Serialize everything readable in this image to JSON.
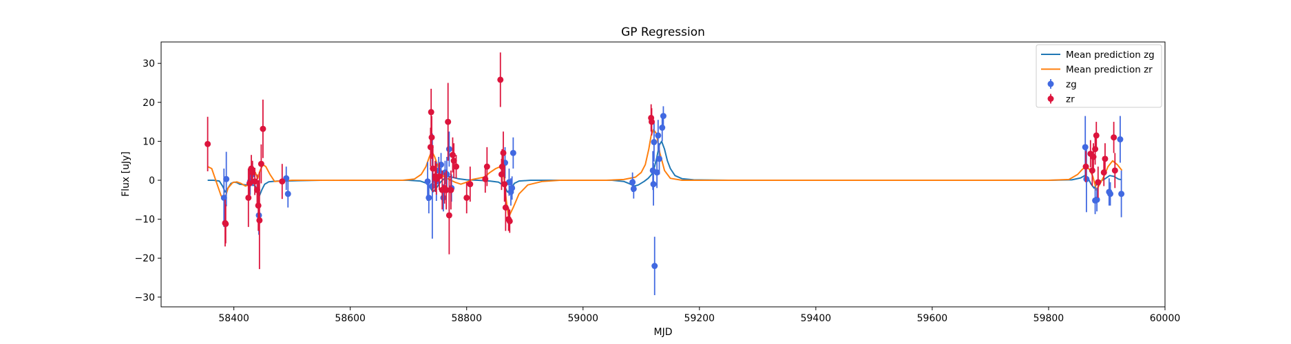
{
  "chart_data": {
    "type": "scatter",
    "title": "GP Regression",
    "xlabel": "MJD",
    "ylabel": "Flux [uJy]",
    "xlim": [
      58275,
      60000
    ],
    "ylim": [
      -32.5,
      35.5
    ],
    "xticks": [
      58400,
      58600,
      58800,
      59000,
      59200,
      59400,
      59600,
      59800,
      60000
    ],
    "yticks": [
      -30,
      -20,
      -10,
      0,
      10,
      20,
      30
    ],
    "grid": false,
    "legend_position": "top-right",
    "legend": [
      {
        "label": "Mean prediction zg",
        "kind": "line",
        "color": "#1f77b4"
      },
      {
        "label": "Mean prediction zr",
        "kind": "line",
        "color": "#ff7f0e"
      },
      {
        "label": "zg",
        "kind": "errorbar",
        "color": "#4169e1"
      },
      {
        "label": "zr",
        "kind": "errorbar",
        "color": "#dc143c"
      }
    ],
    "lines": [
      {
        "name": "Mean prediction zg",
        "color": "#1f77b4",
        "x": [
          58355,
          58365,
          58375,
          58381,
          58385,
          58390,
          58395,
          58400,
          58405,
          58410,
          58420,
          58430,
          58437,
          58441,
          58444,
          58448,
          58453,
          58460,
          58475,
          58490,
          58510,
          58550,
          58600,
          58650,
          58700,
          58720,
          58730,
          58737,
          58742,
          58748,
          58755,
          58762,
          58768,
          58775,
          58785,
          58800,
          58820,
          58840,
          58855,
          58865,
          58870,
          58876,
          58882,
          58890,
          58910,
          58950,
          59000,
          59050,
          59070,
          59080,
          59088,
          59095,
          59105,
          59112,
          59118,
          59123,
          59127,
          59131,
          59135,
          59140,
          59145,
          59150,
          59158,
          59170,
          59190,
          59250,
          59400,
          59600,
          59800,
          59840,
          59855,
          59862,
          59868,
          59873,
          59878,
          59883,
          59888,
          59895,
          59905,
          59912,
          59920,
          59926
        ],
        "y": [
          0,
          0,
          -0.2,
          -1.6,
          -3.0,
          -2.0,
          -0.8,
          -0.5,
          -0.6,
          -1.0,
          -1.2,
          -1.0,
          -1.5,
          -3.5,
          -4.0,
          -2.5,
          -1.0,
          -0.4,
          -0.2,
          -0.2,
          -0.1,
          0,
          0,
          0,
          0,
          -0.2,
          -0.7,
          -1.8,
          -3.0,
          -2.0,
          -0.5,
          0.5,
          1.0,
          0.8,
          0.4,
          0.1,
          0,
          -0.2,
          -0.5,
          -1.5,
          -3.0,
          -2.5,
          -0.8,
          -0.2,
          0,
          0,
          0,
          0,
          -0.3,
          -0.9,
          -1.5,
          -1.2,
          -0.3,
          0.5,
          1.5,
          3.5,
          6.0,
          9.0,
          10.0,
          8.0,
          5.0,
          3.0,
          1.2,
          0.4,
          0.1,
          0,
          0,
          0,
          0,
          0.1,
          0.6,
          1.2,
          0.5,
          -1.0,
          -2.0,
          -1.0,
          -0.3,
          0.2,
          1.2,
          1.0,
          0.3,
          0.1
        ]
      },
      {
        "name": "Mean prediction zr",
        "color": "#ff7f0e",
        "x": [
          58355,
          58362,
          58370,
          58378,
          58384,
          58390,
          58398,
          58405,
          58412,
          58420,
          58428,
          58433,
          58437,
          58441,
          58445,
          58450,
          58455,
          58462,
          58470,
          58480,
          58490,
          58500,
          58520,
          58560,
          58600,
          58650,
          58690,
          58710,
          58722,
          58730,
          58736,
          58740,
          58745,
          58752,
          58760,
          58770,
          58780,
          58790,
          58800,
          58810,
          58820,
          58830,
          58840,
          58850,
          58858,
          58864,
          58868,
          58872,
          58880,
          58890,
          58905,
          58930,
          58960,
          59000,
          59040,
          59070,
          59090,
          59100,
          59107,
          59113,
          59117,
          59121,
          59126,
          59132,
          59140,
          59150,
          59170,
          59200,
          59300,
          59500,
          59700,
          59800,
          59835,
          59850,
          59858,
          59864,
          59870,
          59876,
          59882,
          59888,
          59895,
          59902,
          59910,
          59918,
          59926
        ],
        "y": [
          3.5,
          3.0,
          -0.5,
          -4.0,
          -5.0,
          -2.0,
          -0.6,
          -0.4,
          -0.8,
          -1.5,
          -1.0,
          1.0,
          2.0,
          0.5,
          2.5,
          4.0,
          3.5,
          1.5,
          -0.3,
          -0.2,
          -0.1,
          0,
          0,
          0,
          0,
          0,
          0,
          0.3,
          1.5,
          3.5,
          6.0,
          7.5,
          6.0,
          3.0,
          1.0,
          0.2,
          -0.5,
          -1.0,
          -0.5,
          0.2,
          0.5,
          0.8,
          2.0,
          3.0,
          3.5,
          1.0,
          -5.0,
          -9.5,
          -7.0,
          -3.5,
          -1.2,
          -0.3,
          0,
          0,
          0,
          0.2,
          0.8,
          2.0,
          4.0,
          8.0,
          11.5,
          13.0,
          12.0,
          7.0,
          2.5,
          0.5,
          0,
          0,
          0,
          0,
          0,
          0,
          0.2,
          1.5,
          2.8,
          3.5,
          2.8,
          1.0,
          -2.5,
          -1.0,
          1.0,
          3.5,
          5.0,
          4.0,
          2.5
        ]
      }
    ],
    "series": [
      {
        "name": "zg",
        "color": "#4169e1",
        "points": [
          {
            "x": 58383,
            "y": -4.5,
            "err": 7.5
          },
          {
            "x": 58387,
            "y": 0.3,
            "err": 7.0
          },
          {
            "x": 58428,
            "y": -0.3,
            "err": 3.5
          },
          {
            "x": 58432,
            "y": 1.5,
            "err": 3.0
          },
          {
            "x": 58443,
            "y": -9.0,
            "err": 5.0
          },
          {
            "x": 58490,
            "y": 0.5,
            "err": 3.0
          },
          {
            "x": 58493,
            "y": -3.5,
            "err": 3.5
          },
          {
            "x": 58733,
            "y": -0.3,
            "err": 5.0
          },
          {
            "x": 58735,
            "y": -4.5,
            "err": 4.0
          },
          {
            "x": 58741,
            "y": -1.5,
            "err": 13.5
          },
          {
            "x": 58748,
            "y": -0.3,
            "err": 5.0
          },
          {
            "x": 58752,
            "y": 2.5,
            "err": 3.5
          },
          {
            "x": 58756,
            "y": 4.0,
            "err": 3.0
          },
          {
            "x": 58760,
            "y": -4.5,
            "err": 3.5
          },
          {
            "x": 58763,
            "y": 2.0,
            "err": 3.0
          },
          {
            "x": 58766,
            "y": 1.5,
            "err": 4.5
          },
          {
            "x": 58770,
            "y": 8.0,
            "err": 4.5
          },
          {
            "x": 58774,
            "y": -2.0,
            "err": 3.5
          },
          {
            "x": 58866,
            "y": 4.5,
            "err": 4.0
          },
          {
            "x": 58873,
            "y": -0.5,
            "err": 3.5
          },
          {
            "x": 58876,
            "y": -3.0,
            "err": 3.5
          },
          {
            "x": 58878,
            "y": -2.0,
            "err": 3.0
          },
          {
            "x": 58880,
            "y": 7.0,
            "err": 4.0
          },
          {
            "x": 59085,
            "y": -0.5,
            "err": 2.5
          },
          {
            "x": 59087,
            "y": -2.2,
            "err": 2.5
          },
          {
            "x": 59120,
            "y": 2.5,
            "err": 5.0
          },
          {
            "x": 59121,
            "y": -1.0,
            "err": 5.5
          },
          {
            "x": 59122,
            "y": 9.8,
            "err": 5.0
          },
          {
            "x": 59123,
            "y": -22.0,
            "err": 7.5
          },
          {
            "x": 59127,
            "y": 2.0,
            "err": 4.0
          },
          {
            "x": 59129,
            "y": 11.5,
            "err": 4.0
          },
          {
            "x": 59131,
            "y": 5.5,
            "err": 4.0
          },
          {
            "x": 59136,
            "y": 13.5,
            "err": 3.5
          },
          {
            "x": 59138,
            "y": 16.5,
            "err": 2.5
          },
          {
            "x": 59863,
            "y": 8.5,
            "err": 8.0
          },
          {
            "x": 59865,
            "y": 0.3,
            "err": 8.5
          },
          {
            "x": 59880,
            "y": -5.2,
            "err": 3.5
          },
          {
            "x": 59883,
            "y": -5.0,
            "err": 3.0
          },
          {
            "x": 59904,
            "y": -3.0,
            "err": 3.5
          },
          {
            "x": 59906,
            "y": -3.5,
            "err": 3.0
          },
          {
            "x": 59923,
            "y": 10.5,
            "err": 6.0
          },
          {
            "x": 59925,
            "y": -3.5,
            "err": 6.0
          }
        ]
      },
      {
        "name": "zr",
        "color": "#dc143c",
        "points": [
          {
            "x": 58355,
            "y": 9.3,
            "err": 7.0
          },
          {
            "x": 58385,
            "y": -11.0,
            "err": 6.0
          },
          {
            "x": 58386,
            "y": -11.2,
            "err": 5.0
          },
          {
            "x": 58425,
            "y": -4.5,
            "err": 7.5
          },
          {
            "x": 58427,
            "y": -0.8,
            "err": 4.0
          },
          {
            "x": 58430,
            "y": 3.0,
            "err": 3.5
          },
          {
            "x": 58432,
            "y": 2.0,
            "err": 3.0
          },
          {
            "x": 58436,
            "y": -0.3,
            "err": 3.5
          },
          {
            "x": 58440,
            "y": -2.5,
            "err": 4.0
          },
          {
            "x": 58442,
            "y": -6.5,
            "err": 6.5
          },
          {
            "x": 58444,
            "y": -10.3,
            "err": 12.5
          },
          {
            "x": 58447,
            "y": 4.2,
            "err": 5.0
          },
          {
            "x": 58450,
            "y": 13.2,
            "err": 7.5
          },
          {
            "x": 58483,
            "y": -0.3,
            "err": 4.5
          },
          {
            "x": 58738,
            "y": 8.5,
            "err": 5.0
          },
          {
            "x": 58739,
            "y": 17.5,
            "err": 6.0
          },
          {
            "x": 58740,
            "y": 11.0,
            "err": 5.5
          },
          {
            "x": 58742,
            "y": 3.0,
            "err": 6.0
          },
          {
            "x": 58746,
            "y": 1.0,
            "err": 4.0
          },
          {
            "x": 58748,
            "y": 0.3,
            "err": 4.0
          },
          {
            "x": 58753,
            "y": 1.0,
            "err": 3.5
          },
          {
            "x": 58758,
            "y": -2.5,
            "err": 5.0
          },
          {
            "x": 58762,
            "y": -2.0,
            "err": 4.0
          },
          {
            "x": 58765,
            "y": -2.5,
            "err": 5.0
          },
          {
            "x": 58768,
            "y": 15.0,
            "err": 10.0
          },
          {
            "x": 58770,
            "y": -9.0,
            "err": 10.0
          },
          {
            "x": 58773,
            "y": -2.5,
            "err": 5.0
          },
          {
            "x": 58776,
            "y": 6.5,
            "err": 4.5
          },
          {
            "x": 58778,
            "y": 5.0,
            "err": 4.5
          },
          {
            "x": 58782,
            "y": 3.5,
            "err": 3.0
          },
          {
            "x": 58800,
            "y": -4.5,
            "err": 4.0
          },
          {
            "x": 58806,
            "y": -1.0,
            "err": 4.5
          },
          {
            "x": 58832,
            "y": 0.3,
            "err": 3.5
          },
          {
            "x": 58835,
            "y": 3.5,
            "err": 5.0
          },
          {
            "x": 58858,
            "y": 25.8,
            "err": 7.0
          },
          {
            "x": 58860,
            "y": 1.5,
            "err": 4.0
          },
          {
            "x": 58861,
            "y": 3.5,
            "err": 4.5
          },
          {
            "x": 58863,
            "y": 7.0,
            "err": 5.5
          },
          {
            "x": 58865,
            "y": -1.0,
            "err": 4.5
          },
          {
            "x": 58867,
            "y": -7.0,
            "err": 6.0
          },
          {
            "x": 58872,
            "y": -10.0,
            "err": 3.0
          },
          {
            "x": 58874,
            "y": -10.5,
            "err": 3.0
          },
          {
            "x": 59117,
            "y": 16.0,
            "err": 3.5
          },
          {
            "x": 59118,
            "y": 15.0,
            "err": 3.5
          },
          {
            "x": 59864,
            "y": 3.5,
            "err": 4.0
          },
          {
            "x": 59872,
            "y": 6.8,
            "err": 3.5
          },
          {
            "x": 59875,
            "y": 2.5,
            "err": 4.0
          },
          {
            "x": 59877,
            "y": 6.0,
            "err": 3.5
          },
          {
            "x": 59880,
            "y": 8.0,
            "err": 4.0
          },
          {
            "x": 59882,
            "y": 11.5,
            "err": 3.5
          },
          {
            "x": 59885,
            "y": -0.5,
            "err": 4.0
          },
          {
            "x": 59895,
            "y": 2.0,
            "err": 3.5
          },
          {
            "x": 59897,
            "y": 5.5,
            "err": 4.0
          },
          {
            "x": 59912,
            "y": 11.0,
            "err": 4.0
          },
          {
            "x": 59914,
            "y": 2.5,
            "err": 4.5
          }
        ]
      }
    ]
  }
}
